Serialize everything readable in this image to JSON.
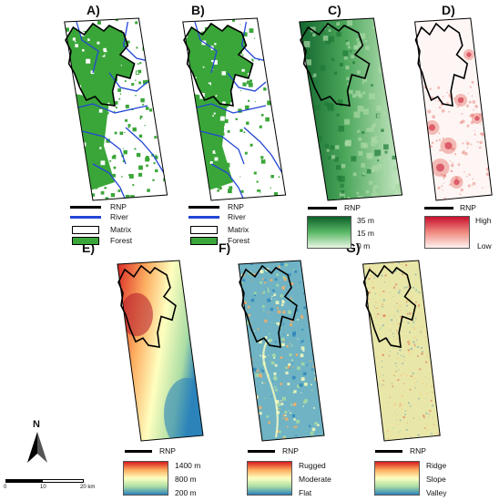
{
  "panels": {
    "A": {
      "label": "A)"
    },
    "B": {
      "label": "B)"
    },
    "C": {
      "label": "C)"
    },
    "D": {
      "label": "D)"
    },
    "E": {
      "label": "E)"
    },
    "F": {
      "label": "F)"
    },
    "G": {
      "label": "G)"
    }
  },
  "legend_ab": {
    "rnp": "RNP",
    "river": "River",
    "matrix": "Matrix",
    "forest": "Forest"
  },
  "legend_c": {
    "rnp": "RNP",
    "max": "35 m",
    "mid": "15 m",
    "min": "0 m"
  },
  "legend_d": {
    "rnp": "RNP",
    "max": "High",
    "min": "Low"
  },
  "legend_e": {
    "rnp": "RNP",
    "max": "1400 m",
    "mid": "800 m",
    "min": "200 m"
  },
  "legend_f": {
    "rnp": "RNP",
    "max": "Rugged",
    "mid": "Moderate",
    "min": "Flat"
  },
  "legend_g": {
    "rnp": "RNP",
    "max": "Ridge",
    "mid": "Slope",
    "min": "Valley"
  },
  "north": {
    "label": "N"
  },
  "scalebar": {
    "t0": "0",
    "t1": "10",
    "t2": "20 km"
  },
  "colors": {
    "forest": "#3aa639",
    "river": "#2346d6",
    "rnp": "#000000",
    "canopy_dark": "#0d5f2a",
    "canopy_light": "#cfeccb",
    "risk": "#e04a3e",
    "elev_low": "#2b83ba",
    "elev_mid": "#ffffbf",
    "elev_high": "#d7191c"
  }
}
